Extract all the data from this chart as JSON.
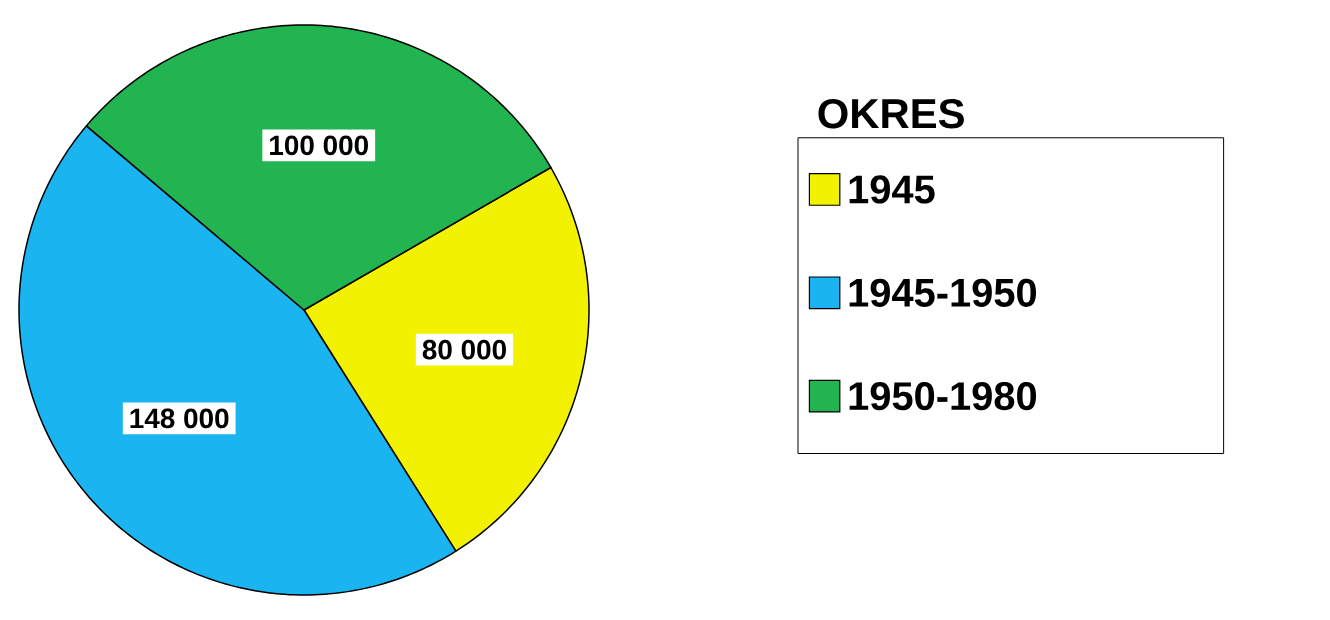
{
  "chart_data": {
    "type": "pie",
    "legend_title": "OKRES",
    "legend": "right",
    "categories": [
      "1945",
      "1945-1950",
      "1950-1980"
    ],
    "values": [
      80000,
      148000,
      100000
    ],
    "colors": [
      "#f2f200",
      "#1ab4f0",
      "#22b450"
    ],
    "value_labels": [
      "80 000",
      "148 000",
      "100 000"
    ]
  }
}
